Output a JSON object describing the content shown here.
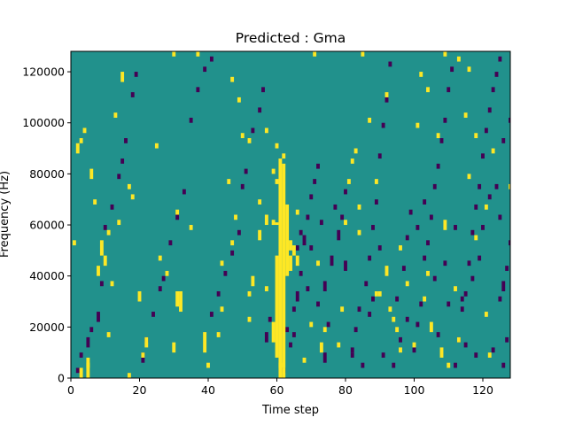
{
  "chart_data": {
    "type": "heatmap",
    "title": "Predicted : Gma",
    "xlabel": "Time step",
    "ylabel": "Frequency (Hz)",
    "xlim": [
      0,
      128
    ],
    "ylim": [
      0,
      128000
    ],
    "xticks": [
      0,
      20,
      40,
      60,
      80,
      100,
      120
    ],
    "yticks": [
      0,
      20000,
      40000,
      60000,
      80000,
      100000,
      120000
    ],
    "xtick_labels": [
      "0",
      "20",
      "40",
      "60",
      "80",
      "100",
      "120"
    ],
    "ytick_labels": [
      "0",
      "20000",
      "40000",
      "60000",
      "80000",
      "100000",
      "120000"
    ],
    "grid": false,
    "legend": "none",
    "colors": {
      "background": "#21918c",
      "low": "#440154",
      "high": "#fde725",
      "axis": "#000000"
    },
    "freq_bin_hz": 2000,
    "description": "Mostly teal (mid-value) cells; sparse dark-purple (low) and yellow (high) cells; a dense yellow vertical band around time steps 59-63 from 2000 Hz up to about 84000 Hz.",
    "cells": {
      "high": [
        [
          3,
          0,
          4
        ],
        [
          5,
          0,
          8
        ],
        [
          17,
          0,
          2
        ],
        [
          44,
          44,
          2
        ],
        [
          59,
          60,
          2
        ],
        [
          60,
          60,
          1
        ],
        [
          61,
          4,
          82
        ],
        [
          62,
          4,
          80
        ],
        [
          60,
          8,
          40
        ],
        [
          59,
          14,
          8
        ],
        [
          61,
          0,
          6
        ],
        [
          62,
          0,
          4
        ],
        [
          63,
          40,
          28
        ],
        [
          64,
          42,
          6
        ],
        [
          65,
          48,
          4
        ],
        [
          66,
          44,
          4
        ],
        [
          60,
          90,
          2
        ],
        [
          59,
          80,
          2
        ],
        [
          57,
          60,
          4
        ],
        [
          55,
          54,
          4
        ],
        [
          53,
          36,
          4
        ],
        [
          60,
          76,
          2
        ],
        [
          64,
          50,
          4
        ],
        [
          62,
          86,
          2
        ],
        [
          39,
          10,
          8
        ],
        [
          40,
          4,
          2
        ],
        [
          30,
          10,
          4
        ],
        [
          31,
          28,
          6
        ],
        [
          20,
          30,
          4
        ],
        [
          22,
          12,
          4
        ],
        [
          31,
          64,
          2
        ],
        [
          32,
          26,
          8
        ],
        [
          8,
          40,
          4
        ],
        [
          9,
          48,
          6
        ],
        [
          10,
          44,
          4
        ],
        [
          11,
          56,
          2
        ],
        [
          7,
          68,
          2
        ],
        [
          6,
          78,
          4
        ],
        [
          2,
          88,
          4
        ],
        [
          3,
          92,
          2
        ],
        [
          4,
          96,
          2
        ],
        [
          5,
          4,
          2
        ],
        [
          13,
          102,
          2
        ],
        [
          15,
          116,
          4
        ],
        [
          25,
          90,
          2
        ],
        [
          30,
          126,
          2
        ],
        [
          37,
          126,
          2
        ],
        [
          47,
          116,
          2
        ],
        [
          49,
          108,
          2
        ],
        [
          50,
          94,
          2
        ],
        [
          52,
          92,
          2
        ],
        [
          52,
          22,
          2
        ],
        [
          71,
          126,
          2
        ],
        [
          73,
          10,
          4
        ],
        [
          74,
          18,
          2
        ],
        [
          81,
          76,
          2
        ],
        [
          82,
          84,
          2
        ],
        [
          83,
          88,
          2
        ],
        [
          84,
          66,
          2
        ],
        [
          85,
          126,
          2
        ],
        [
          87,
          100,
          2
        ],
        [
          89,
          76,
          2
        ],
        [
          89,
          32,
          2
        ],
        [
          90,
          32,
          2
        ],
        [
          92,
          40,
          4
        ],
        [
          93,
          26,
          2
        ],
        [
          95,
          18,
          2
        ],
        [
          96,
          10,
          2
        ],
        [
          101,
          98,
          2
        ],
        [
          103,
          30,
          2
        ],
        [
          105,
          18,
          4
        ],
        [
          108,
          8,
          4
        ],
        [
          109,
          126,
          2
        ],
        [
          109,
          58,
          4
        ],
        [
          110,
          4,
          2
        ],
        [
          113,
          14,
          2
        ],
        [
          115,
          102,
          2
        ],
        [
          116,
          78,
          2
        ],
        [
          118,
          94,
          2
        ],
        [
          118,
          54,
          2
        ],
        [
          121,
          66,
          2
        ],
        [
          121,
          24,
          2
        ],
        [
          123,
          88,
          2
        ],
        [
          128,
          74,
          2
        ],
        [
          122,
          8,
          2
        ],
        [
          44,
          26,
          2
        ],
        [
          43,
          16,
          2
        ],
        [
          47,
          52,
          2
        ],
        [
          52,
          32,
          2
        ],
        [
          57,
          34,
          2
        ],
        [
          98,
          36,
          2
        ],
        [
          100,
          12,
          2
        ],
        [
          104,
          40,
          2
        ],
        [
          107,
          94,
          2
        ],
        [
          112,
          34,
          2
        ],
        [
          113,
          124,
          2
        ],
        [
          116,
          120,
          2
        ],
        [
          104,
          112,
          2
        ],
        [
          102,
          118,
          2
        ],
        [
          92,
          110,
          2
        ],
        [
          96,
          50,
          2
        ],
        [
          94,
          22,
          2
        ],
        [
          84,
          56,
          2
        ],
        [
          80,
          60,
          2
        ],
        [
          79,
          26,
          2
        ],
        [
          78,
          12,
          2
        ],
        [
          72,
          44,
          2
        ],
        [
          70,
          20,
          2
        ],
        [
          68,
          6,
          2
        ],
        [
          66,
          64,
          2
        ],
        [
          55,
          68,
          2
        ],
        [
          57,
          96,
          2
        ],
        [
          48,
          62,
          2
        ],
        [
          46,
          76,
          2
        ],
        [
          35,
          58,
          2
        ],
        [
          28,
          40,
          2
        ],
        [
          26,
          46,
          2
        ],
        [
          21,
          8,
          2
        ],
        [
          18,
          70,
          2
        ],
        [
          17,
          74,
          2
        ],
        [
          14,
          60,
          2
        ],
        [
          12,
          36,
          2
        ],
        [
          11,
          16,
          2
        ],
        [
          1,
          52,
          2
        ]
      ],
      "low": [
        [
          2,
          2,
          2
        ],
        [
          3,
          8,
          2
        ],
        [
          5,
          12,
          4
        ],
        [
          6,
          18,
          2
        ],
        [
          8,
          22,
          4
        ],
        [
          9,
          36,
          2
        ],
        [
          10,
          58,
          2
        ],
        [
          12,
          66,
          2
        ],
        [
          14,
          78,
          2
        ],
        [
          15,
          84,
          2
        ],
        [
          16,
          92,
          2
        ],
        [
          18,
          110,
          2
        ],
        [
          19,
          118,
          2
        ],
        [
          21,
          6,
          4
        ],
        [
          22,
          14,
          2
        ],
        [
          24,
          24,
          2
        ],
        [
          26,
          34,
          2
        ],
        [
          27,
          38,
          2
        ],
        [
          29,
          52,
          2
        ],
        [
          31,
          62,
          2
        ],
        [
          33,
          72,
          2
        ],
        [
          35,
          100,
          2
        ],
        [
          37,
          112,
          2
        ],
        [
          39,
          120,
          2
        ],
        [
          41,
          124,
          2
        ],
        [
          41,
          24,
          2
        ],
        [
          43,
          32,
          2
        ],
        [
          45,
          40,
          2
        ],
        [
          47,
          48,
          2
        ],
        [
          49,
          56,
          2
        ],
        [
          50,
          74,
          2
        ],
        [
          51,
          80,
          2
        ],
        [
          53,
          96,
          2
        ],
        [
          55,
          104,
          2
        ],
        [
          56,
          112,
          2
        ],
        [
          57,
          14,
          4
        ],
        [
          58,
          22,
          2
        ],
        [
          62,
          2,
          2
        ],
        [
          64,
          12,
          2
        ],
        [
          65,
          16,
          2
        ],
        [
          66,
          30,
          4
        ],
        [
          67,
          40,
          2
        ],
        [
          68,
          52,
          4
        ],
        [
          69,
          62,
          2
        ],
        [
          70,
          70,
          2
        ],
        [
          71,
          76,
          2
        ],
        [
          72,
          82,
          2
        ],
        [
          70,
          50,
          2
        ],
        [
          73,
          60,
          2
        ],
        [
          74,
          34,
          4
        ],
        [
          75,
          20,
          2
        ],
        [
          76,
          44,
          4
        ],
        [
          77,
          66,
          2
        ],
        [
          78,
          54,
          4
        ],
        [
          79,
          62,
          2
        ],
        [
          80,
          72,
          2
        ],
        [
          82,
          8,
          2
        ],
        [
          83,
          18,
          2
        ],
        [
          84,
          26,
          2
        ],
        [
          86,
          36,
          2
        ],
        [
          87,
          46,
          2
        ],
        [
          88,
          58,
          2
        ],
        [
          89,
          68,
          2
        ],
        [
          90,
          86,
          2
        ],
        [
          91,
          98,
          2
        ],
        [
          92,
          108,
          2
        ],
        [
          93,
          122,
          2
        ],
        [
          94,
          4,
          2
        ],
        [
          95,
          30,
          2
        ],
        [
          97,
          42,
          2
        ],
        [
          98,
          54,
          2
        ],
        [
          99,
          64,
          2
        ],
        [
          100,
          10,
          2
        ],
        [
          101,
          20,
          2
        ],
        [
          102,
          28,
          2
        ],
        [
          103,
          46,
          2
        ],
        [
          104,
          52,
          2
        ],
        [
          105,
          62,
          2
        ],
        [
          106,
          74,
          2
        ],
        [
          107,
          82,
          2
        ],
        [
          108,
          92,
          2
        ],
        [
          109,
          100,
          2
        ],
        [
          110,
          112,
          2
        ],
        [
          111,
          120,
          2
        ],
        [
          112,
          4,
          2
        ],
        [
          113,
          14,
          2
        ],
        [
          114,
          26,
          2
        ],
        [
          115,
          32,
          2
        ],
        [
          116,
          44,
          2
        ],
        [
          117,
          56,
          2
        ],
        [
          118,
          66,
          2
        ],
        [
          119,
          74,
          2
        ],
        [
          120,
          86,
          2
        ],
        [
          121,
          96,
          2
        ],
        [
          122,
          104,
          2
        ],
        [
          123,
          112,
          2
        ],
        [
          124,
          118,
          2
        ],
        [
          125,
          124,
          2
        ],
        [
          126,
          4,
          2
        ],
        [
          127,
          14,
          2
        ],
        [
          126,
          34,
          4
        ],
        [
          127,
          42,
          2
        ],
        [
          128,
          52,
          2
        ],
        [
          125,
          62,
          2
        ],
        [
          124,
          74,
          2
        ],
        [
          126,
          92,
          2
        ],
        [
          128,
          100,
          2
        ],
        [
          63,
          18,
          2
        ],
        [
          65,
          26,
          2
        ],
        [
          66,
          50,
          2
        ],
        [
          67,
          56,
          2
        ],
        [
          69,
          34,
          2
        ],
        [
          72,
          28,
          2
        ],
        [
          74,
          6,
          4
        ],
        [
          80,
          42,
          4
        ],
        [
          82,
          10,
          2
        ],
        [
          85,
          4,
          2
        ],
        [
          87,
          24,
          2
        ],
        [
          88,
          30,
          2
        ],
        [
          90,
          50,
          2
        ],
        [
          91,
          8,
          2
        ],
        [
          96,
          14,
          2
        ],
        [
          98,
          22,
          2
        ],
        [
          101,
          58,
          2
        ],
        [
          103,
          68,
          2
        ],
        [
          106,
          38,
          2
        ],
        [
          107,
          16,
          2
        ],
        [
          109,
          44,
          2
        ],
        [
          110,
          28,
          2
        ],
        [
          112,
          58,
          2
        ],
        [
          114,
          30,
          2
        ],
        [
          115,
          12,
          2
        ],
        [
          117,
          38,
          2
        ],
        [
          118,
          8,
          2
        ],
        [
          119,
          46,
          2
        ],
        [
          120,
          58,
          2
        ],
        [
          122,
          70,
          2
        ],
        [
          123,
          10,
          2
        ],
        [
          125,
          30,
          2
        ]
      ]
    }
  }
}
